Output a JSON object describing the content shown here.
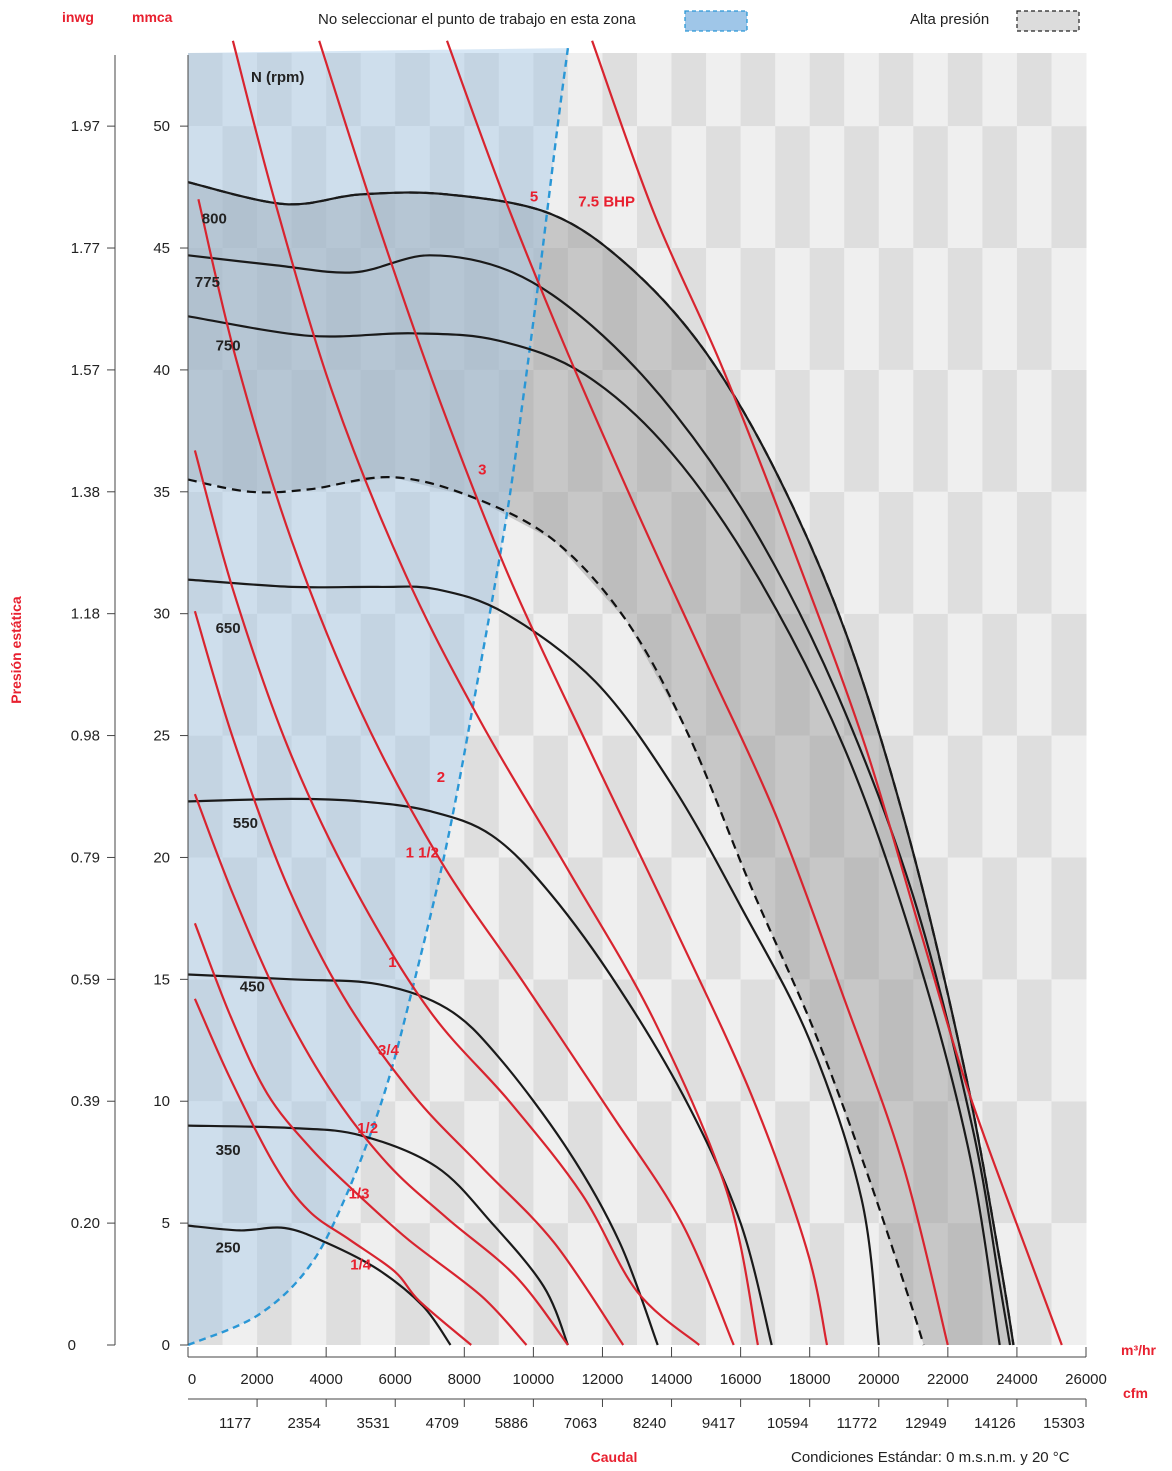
{
  "chart_data": {
    "type": "line",
    "y_left_unit": "inwg",
    "y_right_unit": "mmca",
    "y_title": "Presión estática",
    "x_title": "Caudal",
    "x_unit_primary": "m³/hr",
    "x_unit_secondary": "cfm",
    "footnote": "Condiciones Estándar: 0 m.s.n.m. y 20 °C",
    "rpm_header": "N (rpm)",
    "legend": {
      "no_select": "No seleccionar el punto de trabajo en esta zona",
      "high_pressure": "Alta presión"
    },
    "xlim": [
      0,
      26000
    ],
    "ylim": [
      0,
      53
    ],
    "x_ticks": [
      "0",
      "2000",
      "4000",
      "6000",
      "8000",
      "10000",
      "12000",
      "14000",
      "16000",
      "18000",
      "20000",
      "22000",
      "24000",
      "26000"
    ],
    "x_ticks_values": [
      0,
      2000,
      4000,
      6000,
      8000,
      10000,
      12000,
      14000,
      16000,
      18000,
      20000,
      22000,
      24000,
      26000
    ],
    "cfm_ticks": [
      "1177",
      "2354",
      "3531",
      "4709",
      "5886",
      "7063",
      "8240",
      "9417",
      "10594",
      "11772",
      "12949",
      "14126",
      "15303"
    ],
    "cfm_ticks_values": [
      2000,
      4000,
      6000,
      8000,
      10000,
      12000,
      14000,
      16000,
      18000,
      20000,
      22000,
      24000,
      26000
    ],
    "y_ticks_mmca": [
      "0",
      "5",
      "10",
      "15",
      "20",
      "25",
      "30",
      "35",
      "40",
      "45",
      "50"
    ],
    "y_ticks_values": [
      0,
      5,
      10,
      15,
      20,
      25,
      30,
      35,
      40,
      45,
      50
    ],
    "y_ticks_inwg": [
      "0",
      "0.20",
      "0.39",
      "0.59",
      "0.79",
      "0.98",
      "1.18",
      "1.38",
      "1.57",
      "1.77",
      "1.97"
    ],
    "colors": {
      "power": "#d8242f",
      "rpm": "#1a1a1a",
      "zone": "#2a97d6",
      "zone_fill": "#9fc6e8",
      "high_fill": "#8f8f8f",
      "band_a": "#dedede",
      "band_b": "#efefef",
      "label_red": "#e8202f"
    },
    "rpm_curves": [
      {
        "name": "250",
        "label_xy": [
          800,
          3.8
        ],
        "points": [
          [
            0,
            4.9
          ],
          [
            1500,
            4.7
          ],
          [
            2800,
            4.8
          ],
          [
            4000,
            4.2
          ],
          [
            5500,
            3.1
          ],
          [
            6800,
            1.6
          ],
          [
            7600,
            0
          ]
        ]
      },
      {
        "name": "350",
        "label_xy": [
          800,
          7.8
        ],
        "points": [
          [
            0,
            9.0
          ],
          [
            3000,
            8.9
          ],
          [
            5000,
            8.6
          ],
          [
            7200,
            7.3
          ],
          [
            8800,
            5.0
          ],
          [
            10300,
            2.4
          ],
          [
            11000,
            0
          ]
        ]
      },
      {
        "name": "450",
        "label_xy": [
          1500,
          14.5
        ],
        "points": [
          [
            0,
            15.2
          ],
          [
            3000,
            15.0
          ],
          [
            5500,
            14.8
          ],
          [
            7500,
            13.8
          ],
          [
            9000,
            11.8
          ],
          [
            11000,
            8.0
          ],
          [
            12500,
            4.2
          ],
          [
            13600,
            0
          ]
        ]
      },
      {
        "name": "550",
        "label_xy": [
          1300,
          21.2
        ],
        "points": [
          [
            0,
            22.3
          ],
          [
            3000,
            22.4
          ],
          [
            5000,
            22.3
          ],
          [
            7000,
            21.9
          ],
          [
            8800,
            20.9
          ],
          [
            10500,
            18.5
          ],
          [
            12500,
            14.6
          ],
          [
            14500,
            9.8
          ],
          [
            16000,
            5.0
          ],
          [
            16900,
            0
          ]
        ]
      },
      {
        "name": "650",
        "label_xy": [
          800,
          29.2
        ],
        "points": [
          [
            0,
            31.4
          ],
          [
            3000,
            31.1
          ],
          [
            5500,
            31.1
          ],
          [
            7200,
            31.0
          ],
          [
            9200,
            30.0
          ],
          [
            11800,
            27.2
          ],
          [
            14000,
            23.0
          ],
          [
            16000,
            18.0
          ],
          [
            18000,
            12.5
          ],
          [
            19500,
            6.0
          ],
          [
            20000,
            0
          ]
        ]
      },
      {
        "name": "750",
        "label_xy": [
          800,
          40.8
        ],
        "points": [
          [
            0,
            42.2
          ],
          [
            3500,
            41.4
          ],
          [
            6500,
            41.5
          ],
          [
            9000,
            41.2
          ],
          [
            11500,
            39.8
          ],
          [
            14000,
            36.6
          ],
          [
            16500,
            31.5
          ],
          [
            19000,
            24.5
          ],
          [
            21000,
            16.5
          ],
          [
            22600,
            8.0
          ],
          [
            23500,
            0
          ]
        ]
      },
      {
        "name": "775",
        "label_xy": [
          200,
          43.4
        ],
        "points": [
          [
            0,
            44.7
          ],
          [
            2500,
            44.3
          ],
          [
            4800,
            44.0
          ],
          [
            7000,
            44.7
          ],
          [
            9400,
            44.0
          ],
          [
            11700,
            41.8
          ],
          [
            14100,
            38.2
          ],
          [
            16500,
            33.2
          ],
          [
            18800,
            26.7
          ],
          [
            21000,
            18.4
          ],
          [
            22700,
            9.0
          ],
          [
            23500,
            2.5
          ],
          [
            23800,
            0
          ]
        ]
      },
      {
        "name": "800",
        "label_xy": [
          400,
          46.0
        ],
        "points": [
          [
            0,
            47.7
          ],
          [
            2800,
            46.8
          ],
          [
            5000,
            47.2
          ],
          [
            7500,
            47.2
          ],
          [
            10500,
            46.4
          ],
          [
            12800,
            44.2
          ],
          [
            15000,
            40.7
          ],
          [
            17100,
            35.6
          ],
          [
            19100,
            29.0
          ],
          [
            20900,
            20.7
          ],
          [
            22500,
            11.2
          ],
          [
            23500,
            3.5
          ],
          [
            23900,
            0
          ]
        ]
      }
    ],
    "power_curves": [
      {
        "name": "1/4",
        "label_xy": [
          4700,
          3.1
        ],
        "points": [
          [
            200,
            14.2
          ],
          [
            1200,
            11.0
          ],
          [
            2500,
            7.4
          ],
          [
            3500,
            5.5
          ],
          [
            4700,
            4.3
          ],
          [
            6000,
            3.0
          ],
          [
            6700,
            1.8
          ],
          [
            8200,
            0
          ]
        ]
      },
      {
        "name": "1/3",
        "label_xy": [
          4650,
          6.0
        ],
        "points": [
          [
            200,
            17.3
          ],
          [
            1200,
            13.6
          ],
          [
            2300,
            10.3
          ],
          [
            3600,
            8.0
          ],
          [
            4900,
            6.2
          ],
          [
            6400,
            4.3
          ],
          [
            8500,
            2.0
          ],
          [
            9800,
            0
          ]
        ]
      },
      {
        "name": "1/2",
        "label_xy": [
          4900,
          8.7
        ],
        "points": [
          [
            200,
            22.6
          ],
          [
            1300,
            18.5
          ],
          [
            2700,
            14.0
          ],
          [
            4200,
            10.3
          ],
          [
            5800,
            7.4
          ],
          [
            7500,
            5.2
          ],
          [
            9500,
            2.8
          ],
          [
            11000,
            0
          ]
        ]
      },
      {
        "name": "3/4",
        "label_xy": [
          5500,
          11.9
        ],
        "points": [
          [
            200,
            30.1
          ],
          [
            1300,
            24.9
          ],
          [
            2800,
            19.1
          ],
          [
            4500,
            14.3
          ],
          [
            6500,
            10.3
          ],
          [
            8500,
            7.3
          ],
          [
            10600,
            4.2
          ],
          [
            12600,
            0
          ]
        ]
      },
      {
        "name": "1",
        "label_xy": [
          5800,
          15.5
        ],
        "points": [
          [
            200,
            36.7
          ],
          [
            1300,
            31.0
          ],
          [
            2900,
            24.5
          ],
          [
            4800,
            18.8
          ],
          [
            7000,
            13.7
          ],
          [
            9300,
            10.0
          ],
          [
            11400,
            6.2
          ],
          [
            13000,
            2.2
          ],
          [
            14800,
            0
          ]
        ]
      },
      {
        "name": "1 1/2",
        "label_xy": [
          6300,
          20.0
        ],
        "points": [
          [
            300,
            47.0
          ],
          [
            1400,
            40.4
          ],
          [
            3000,
            33.0
          ],
          [
            5000,
            26.0
          ],
          [
            7300,
            19.9
          ],
          [
            9700,
            14.9
          ],
          [
            12200,
            9.6
          ],
          [
            14300,
            5.0
          ],
          [
            15800,
            0
          ]
        ]
      },
      {
        "name": "2",
        "label_xy": [
          7200,
          23.1
        ],
        "points": [
          [
            1300,
            53.5
          ],
          [
            2500,
            47.0
          ],
          [
            4200,
            39.0
          ],
          [
            6300,
            31.6
          ],
          [
            8500,
            25.5
          ],
          [
            11000,
            19.5
          ],
          [
            13500,
            13.3
          ],
          [
            15600,
            6.3
          ],
          [
            16500,
            0
          ]
        ]
      },
      {
        "name": "3",
        "label_xy": [
          8400,
          35.7
        ],
        "points": [
          [
            3800,
            53.5
          ],
          [
            5500,
            46.0
          ],
          [
            7300,
            38.7
          ],
          [
            9300,
            31.5
          ],
          [
            11700,
            24.2
          ],
          [
            14000,
            17.4
          ],
          [
            16300,
            10.3
          ],
          [
            17900,
            4.0
          ],
          [
            18500,
            0
          ]
        ]
      },
      {
        "name": "5",
        "label_xy": [
          9900,
          46.9
        ],
        "points": [
          [
            7500,
            53.5
          ],
          [
            9100,
            47.3
          ],
          [
            10900,
            41.0
          ],
          [
            13000,
            34.2
          ],
          [
            15000,
            28.0
          ],
          [
            17000,
            21.8
          ],
          [
            19000,
            14.2
          ],
          [
            20700,
            7.4
          ],
          [
            22000,
            0
          ]
        ]
      },
      {
        "name": "7.5 BHP",
        "label_xy": [
          11300,
          62.5
        ],
        "points": [
          [
            11700,
            53.5
          ],
          [
            13500,
            46.4
          ],
          [
            15500,
            40.0
          ],
          [
            17700,
            32.0
          ],
          [
            19600,
            24.6
          ],
          [
            21200,
            17.0
          ],
          [
            22600,
            10.4
          ],
          [
            24300,
            3.8
          ],
          [
            25300,
            0
          ]
        ]
      }
    ],
    "zone_boundary": [
      [
        0,
        0
      ],
      [
        2000,
        1.2
      ],
      [
        3500,
        3.2
      ],
      [
        4600,
        6.2
      ],
      [
        5700,
        10.4
      ],
      [
        6600,
        15.2
      ],
      [
        7500,
        20.6
      ],
      [
        8300,
        26.6
      ],
      [
        9200,
        33.8
      ],
      [
        9700,
        38.8
      ],
      [
        10200,
        44.2
      ],
      [
        10700,
        50.0
      ],
      [
        11000,
        53.2
      ]
    ],
    "high_upper": [
      [
        0,
        47.7
      ],
      [
        2800,
        46.8
      ],
      [
        5000,
        47.2
      ],
      [
        7500,
        47.2
      ],
      [
        10500,
        46.4
      ],
      [
        12800,
        44.2
      ],
      [
        15000,
        40.7
      ],
      [
        17100,
        35.6
      ],
      [
        19100,
        29.0
      ],
      [
        20900,
        20.7
      ],
      [
        22500,
        11.2
      ],
      [
        23500,
        3.5
      ],
      [
        23900,
        0
      ]
    ],
    "high_lower": [
      [
        0,
        35.5
      ],
      [
        1800,
        35.0
      ],
      [
        3500,
        35.1
      ],
      [
        5900,
        35.6
      ],
      [
        8200,
        34.8
      ],
      [
        10600,
        33.0
      ],
      [
        12700,
        29.7
      ],
      [
        14500,
        25.0
      ],
      [
        16300,
        18.8
      ],
      [
        18100,
        13.0
      ],
      [
        19600,
        7.3
      ],
      [
        20900,
        1.8
      ],
      [
        21300,
        0
      ]
    ]
  }
}
